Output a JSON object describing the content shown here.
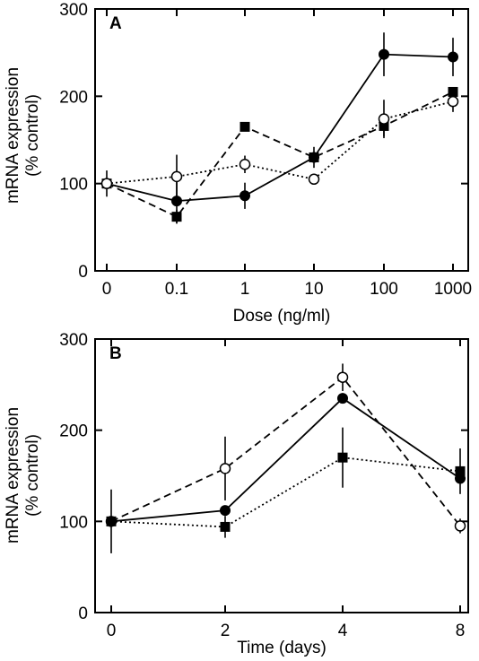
{
  "chart_data": [
    {
      "type": "line",
      "panel_label": "A",
      "xlabel": "Dose (ng/ml)",
      "ylabel": "mRNA expression (% control)",
      "ylabel_lines": [
        "mRNA expression",
        "(% control)"
      ],
      "ylim": [
        0,
        300
      ],
      "yticks": [
        "0",
        "100",
        "200",
        "300"
      ],
      "categories": [
        "0",
        "0.1",
        "1",
        "10",
        "100",
        "1000"
      ],
      "grid": false,
      "series": [
        {
          "marker": "filled-circle",
          "line": "solid",
          "values": [
            100,
            80,
            86,
            130,
            248,
            245
          ],
          "errors": [
            15,
            25,
            15,
            12,
            25,
            22
          ]
        },
        {
          "marker": "filled-square",
          "line": "dashed",
          "values": [
            100,
            62,
            165,
            130,
            166,
            205
          ],
          "errors": [
            0,
            8,
            0,
            0,
            12,
            0
          ]
        },
        {
          "marker": "open-circle",
          "line": "dotted",
          "values": [
            100,
            108,
            122,
            105,
            174,
            194
          ],
          "errors": [
            0,
            25,
            10,
            0,
            22,
            12
          ]
        }
      ]
    },
    {
      "type": "line",
      "panel_label": "B",
      "xlabel": "Time (days)",
      "ylabel": "mRNA expression (% control)",
      "ylabel_lines": [
        "mRNA expression",
        "(% control)"
      ],
      "ylim": [
        0,
        300
      ],
      "yticks": [
        "0",
        "100",
        "200",
        "300"
      ],
      "categories": [
        "0",
        "2",
        "4",
        "8"
      ],
      "grid": false,
      "series": [
        {
          "marker": "filled-circle",
          "line": "solid",
          "values": [
            100,
            112,
            235,
            147
          ],
          "errors": [
            0,
            0,
            0,
            0
          ]
        },
        {
          "marker": "open-circle",
          "line": "dashed",
          "values": [
            100,
            158,
            258,
            95
          ],
          "errors": [
            0,
            35,
            15,
            8
          ]
        },
        {
          "marker": "filled-square",
          "line": "dotted",
          "values": [
            100,
            94,
            170,
            155
          ],
          "errors": [
            35,
            12,
            33,
            25
          ]
        }
      ]
    }
  ]
}
